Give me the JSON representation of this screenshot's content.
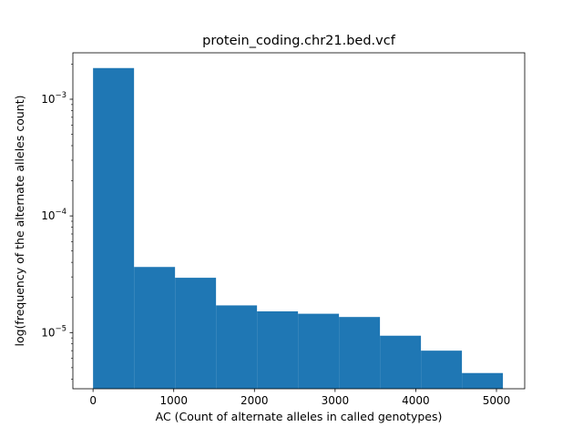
{
  "chart_data": {
    "type": "bar",
    "title": "protein_coding.chr21.bed.vcf",
    "xlabel": "AC (Count of alternate alleles in called genotypes)",
    "ylabel": "log(frequency of the alternate alleles count)",
    "y_scale": "log",
    "xlim": [
      -250,
      5350
    ],
    "ylim": [
      3.3e-06,
      0.0025
    ],
    "grid": false,
    "legend": "none",
    "bar_color": "#1f77b4",
    "bins": [
      {
        "x0": 0,
        "x1": 508,
        "value": 0.00185
      },
      {
        "x0": 508,
        "x1": 1016,
        "value": 3.65e-05
      },
      {
        "x0": 1016,
        "x1": 1524,
        "value": 2.95e-05
      },
      {
        "x0": 1524,
        "x1": 2032,
        "value": 1.71e-05
      },
      {
        "x0": 2032,
        "x1": 2540,
        "value": 1.52e-05
      },
      {
        "x0": 2540,
        "x1": 3048,
        "value": 1.45e-05
      },
      {
        "x0": 3048,
        "x1": 3556,
        "value": 1.36e-05
      },
      {
        "x0": 3556,
        "x1": 4064,
        "value": 9.4e-06
      },
      {
        "x0": 4064,
        "x1": 4572,
        "value": 7e-06
      },
      {
        "x0": 4572,
        "x1": 5080,
        "value": 4.5e-06
      }
    ],
    "x_ticks": [
      {
        "value": 0,
        "label": "0"
      },
      {
        "value": 1000,
        "label": "1000"
      },
      {
        "value": 2000,
        "label": "2000"
      },
      {
        "value": 3000,
        "label": "3000"
      },
      {
        "value": 4000,
        "label": "4000"
      },
      {
        "value": 5000,
        "label": "5000"
      }
    ],
    "y_ticks": [
      {
        "value": 1e-05,
        "base": "10",
        "exp": "−5"
      },
      {
        "value": 0.0001,
        "base": "10",
        "exp": "−4"
      },
      {
        "value": 0.001,
        "base": "10",
        "exp": "−3"
      }
    ]
  }
}
